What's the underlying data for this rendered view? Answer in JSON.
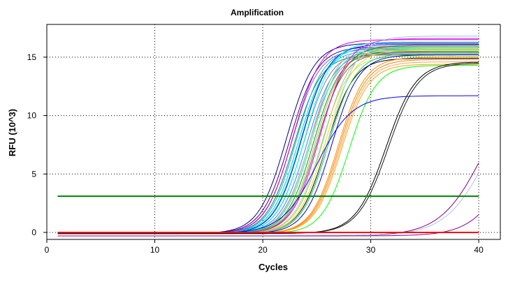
{
  "chart_data": {
    "type": "line",
    "title": "Amplification",
    "xlabel": "Cycles",
    "ylabel": "RFU (10^3)",
    "xlim": [
      0,
      42
    ],
    "ylim": [
      -0.6,
      17.8
    ],
    "x_ticks": [
      0,
      10,
      20,
      30,
      40
    ],
    "y_ticks": [
      0,
      5,
      10,
      15
    ],
    "grid": "dotted",
    "threshold": 3.1,
    "threshold_color": "#008000",
    "baseline_color": "#ff0000",
    "cycles": [
      1,
      40
    ],
    "series": [
      {
        "color": "#000080",
        "base": -0.1,
        "plateau": 16.2,
        "midpoint": 22.2,
        "slope": 0.78
      },
      {
        "color": "#4b0082",
        "base": -0.1,
        "plateau": 15.9,
        "midpoint": 22.5,
        "slope": 0.78
      },
      {
        "color": "#7b68ee",
        "base": -0.1,
        "plateau": 15.7,
        "midpoint": 22.7,
        "slope": 0.8
      },
      {
        "color": "#d000d0",
        "base": -0.1,
        "plateau": 16.5,
        "midpoint": 22.8,
        "slope": 0.78
      },
      {
        "color": "#008080",
        "base": -0.1,
        "plateau": 15.2,
        "midpoint": 22.9,
        "slope": 0.8
      },
      {
        "color": "#20b2aa",
        "base": -0.1,
        "plateau": 15.8,
        "midpoint": 23.1,
        "slope": 0.8
      },
      {
        "color": "#00ced1",
        "base": -0.1,
        "plateau": 15.6,
        "midpoint": 23.3,
        "slope": 0.8
      },
      {
        "color": "#00e5ee",
        "base": -0.1,
        "plateau": 15.9,
        "midpoint": 23.5,
        "slope": 0.8
      },
      {
        "color": "#0000ff",
        "base": -0.1,
        "plateau": 16.1,
        "midpoint": 23.6,
        "slope": 0.8
      },
      {
        "color": "#808080",
        "base": -0.1,
        "plateau": 15.5,
        "midpoint": 23.8,
        "slope": 0.8
      },
      {
        "color": "#00ffff",
        "base": -0.1,
        "plateau": 16.3,
        "midpoint": 23.9,
        "slope": 0.8
      },
      {
        "color": "#1e90ff",
        "base": -0.1,
        "plateau": 15.4,
        "midpoint": 24.1,
        "slope": 0.8
      },
      {
        "color": "#ff69b4",
        "base": -0.1,
        "plateau": 15.3,
        "midpoint": 24.3,
        "slope": 0.8
      },
      {
        "color": "#a9a9a9",
        "base": -0.1,
        "plateau": 16.0,
        "midpoint": 24.4,
        "slope": 0.8
      },
      {
        "color": "#00ff7f",
        "base": -0.1,
        "plateau": 15.8,
        "midpoint": 24.5,
        "slope": 0.8
      },
      {
        "color": "#228b22",
        "base": -0.1,
        "plateau": 15.5,
        "midpoint": 24.7,
        "slope": 0.8
      },
      {
        "color": "#9acd32",
        "base": -0.1,
        "plateau": 15.7,
        "midpoint": 24.9,
        "slope": 0.8
      },
      {
        "color": "#696969",
        "base": -0.1,
        "plateau": 15.4,
        "midpoint": 25.0,
        "slope": 0.8
      },
      {
        "color": "#8b4513",
        "base": -0.1,
        "plateau": 16.0,
        "midpoint": 25.2,
        "slope": 0.8
      },
      {
        "color": "#ff00ff",
        "base": -0.1,
        "plateau": 16.6,
        "midpoint": 25.3,
        "slope": 0.78
      },
      {
        "color": "#90ee90",
        "base": -0.1,
        "plateau": 15.1,
        "midpoint": 25.4,
        "slope": 0.8
      },
      {
        "color": "#bdb76b",
        "base": -0.1,
        "plateau": 15.9,
        "midpoint": 25.6,
        "slope": 0.8
      },
      {
        "color": "#ffd700",
        "base": -0.1,
        "plateau": 15.6,
        "midpoint": 25.8,
        "slope": 0.8
      },
      {
        "color": "#000000",
        "base": -0.1,
        "plateau": 14.9,
        "midpoint": 25.9,
        "slope": 0.8
      },
      {
        "color": "#32cd32",
        "base": -0.1,
        "plateau": 15.3,
        "midpoint": 26.1,
        "slope": 0.8
      },
      {
        "color": "#87ceeb",
        "base": -0.1,
        "plateau": 16.8,
        "midpoint": 26.2,
        "slope": 0.78
      },
      {
        "color": "#0000cd",
        "base": -0.1,
        "plateau": 15.2,
        "midpoint": 26.4,
        "slope": 0.8
      },
      {
        "color": "#ff8c00",
        "base": -0.1,
        "plateau": 15.0,
        "midpoint": 27.0,
        "slope": 0.8
      },
      {
        "color": "#ff7f00",
        "base": -0.1,
        "plateau": 14.8,
        "midpoint": 27.1,
        "slope": 0.8
      },
      {
        "color": "#f4a460",
        "base": -0.1,
        "plateau": 14.6,
        "midpoint": 27.2,
        "slope": 0.8
      },
      {
        "color": "#ffa500",
        "base": -0.1,
        "plateau": 14.4,
        "midpoint": 27.3,
        "slope": 0.8
      },
      {
        "color": "#00ff00",
        "base": -0.1,
        "plateau": 14.3,
        "midpoint": 28.0,
        "slope": 0.8
      },
      {
        "color": "#0000ff",
        "base": -0.1,
        "plateau": 11.7,
        "midpoint": 25.0,
        "slope": 0.62
      },
      {
        "color": "#000000",
        "base": -0.1,
        "plateau": 14.6,
        "midpoint": 31.4,
        "slope": 0.72
      },
      {
        "color": "#1a1a1a",
        "base": -0.1,
        "plateau": 14.5,
        "midpoint": 31.6,
        "slope": 0.72
      },
      {
        "color": "#800080",
        "base": -0.3,
        "plateau": 14.0,
        "midpoint": 40.5,
        "slope": 0.5
      },
      {
        "color": "#b0c4de",
        "base": -0.3,
        "plateau": 14.0,
        "midpoint": 41.0,
        "slope": 0.5
      },
      {
        "color": "#8b008b",
        "base": -0.3,
        "plateau": 14.0,
        "midpoint": 43.5,
        "slope": 0.55
      }
    ]
  }
}
